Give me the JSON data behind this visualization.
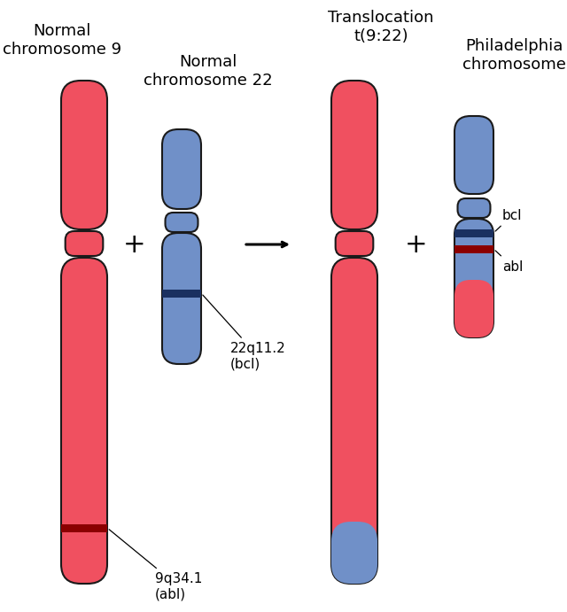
{
  "bg_color": "#ffffff",
  "red_color": "#f05060",
  "red_dark_color": "#8b0000",
  "blue_color": "#7090c8",
  "blue_dark_color": "#1a3060",
  "outline_color": "#1a1a1a",
  "title_left": "Normal\nchromosome 9",
  "title_left2": "Normal\nchromosome 22",
  "title_right": "Translocation\nt(9:22)",
  "title_right2": "Philadelphia\nchromosome",
  "label_abl": "9q34.1\n(abl)",
  "label_bcl": "22q11.2\n(bcl)",
  "label_bcl_short": "bcl",
  "label_abl_short": "abl",
  "plus_symbol": "+",
  "fontsize_title": 13,
  "fontsize_label": 11
}
